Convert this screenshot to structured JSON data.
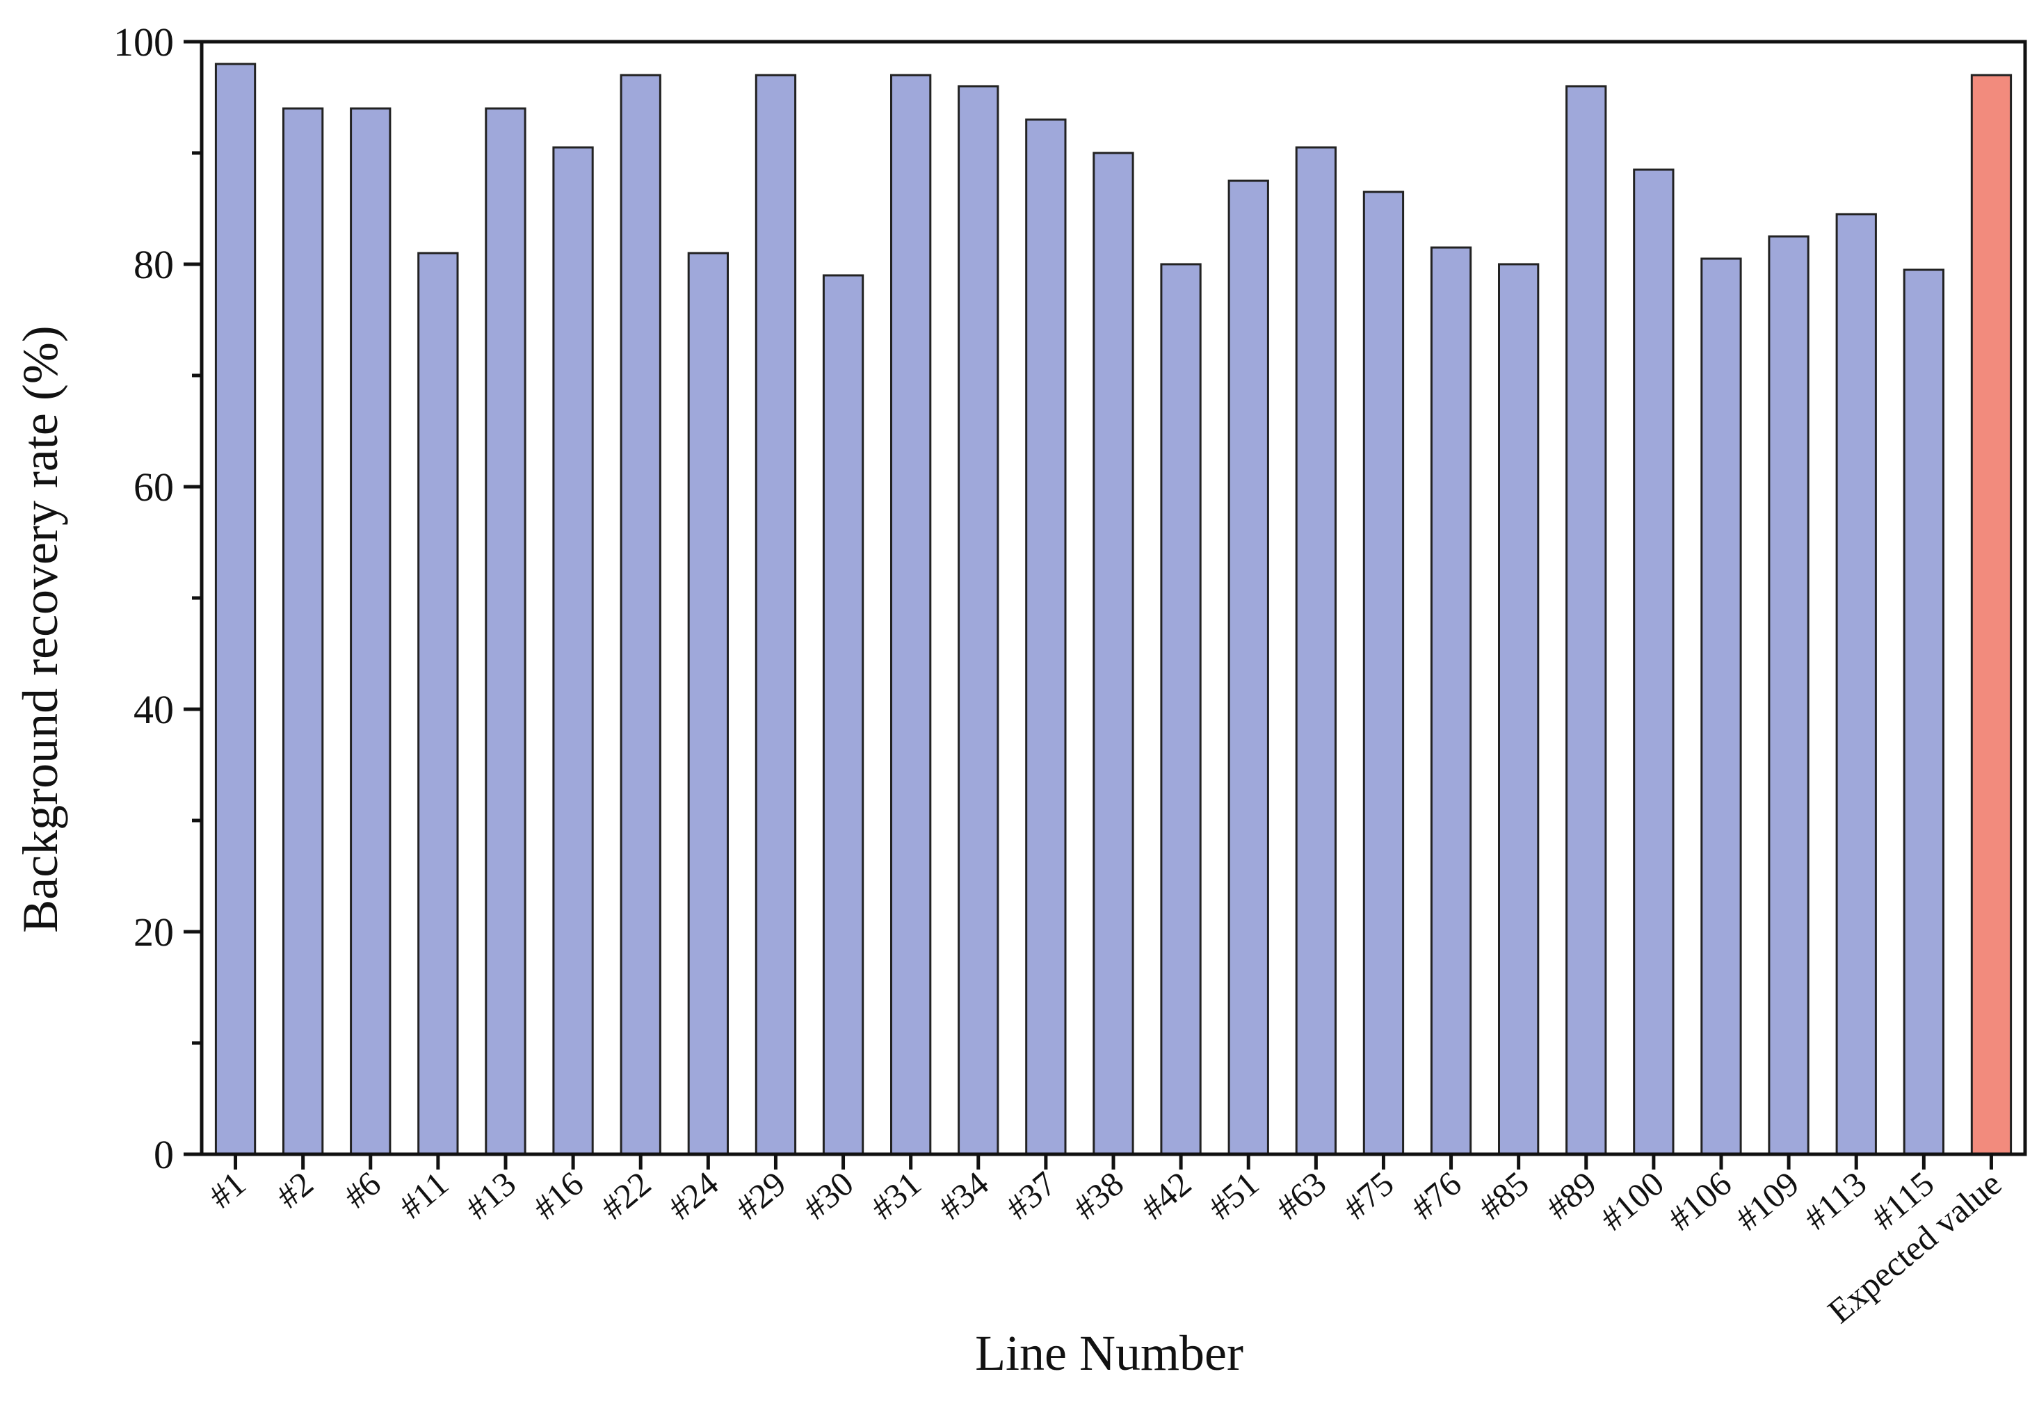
{
  "chart_data": {
    "type": "bar",
    "xlabel": "Line Number",
    "ylabel": "Background recovery rate (%)",
    "ylim": [
      0,
      100
    ],
    "yticks": [
      0,
      20,
      40,
      60,
      80,
      100
    ],
    "grid": false,
    "legend": "none",
    "categories": [
      "#1",
      "#2",
      "#6",
      "#11",
      "#13",
      "#16",
      "#22",
      "#24",
      "#29",
      "#30",
      "#31",
      "#34",
      "#37",
      "#38",
      "#42",
      "#51",
      "#63",
      "#75",
      "#76",
      "#85",
      "#89",
      "#100",
      "#106",
      "#109",
      "#113",
      "#115",
      "Expected value"
    ],
    "values": [
      98,
      94,
      94,
      81,
      94,
      90.5,
      97,
      81,
      97,
      79,
      97,
      96,
      93,
      90,
      80,
      87.5,
      90.5,
      86.5,
      81.5,
      80,
      96,
      88.5,
      80.5,
      82.5,
      84.5,
      79.5,
      97
    ],
    "colors": {
      "bar": "#9fa8da",
      "highlight": "#f28b7d",
      "highlight_category": "Expected value",
      "bar_stroke": "#222222",
      "axis": "#111111"
    }
  }
}
